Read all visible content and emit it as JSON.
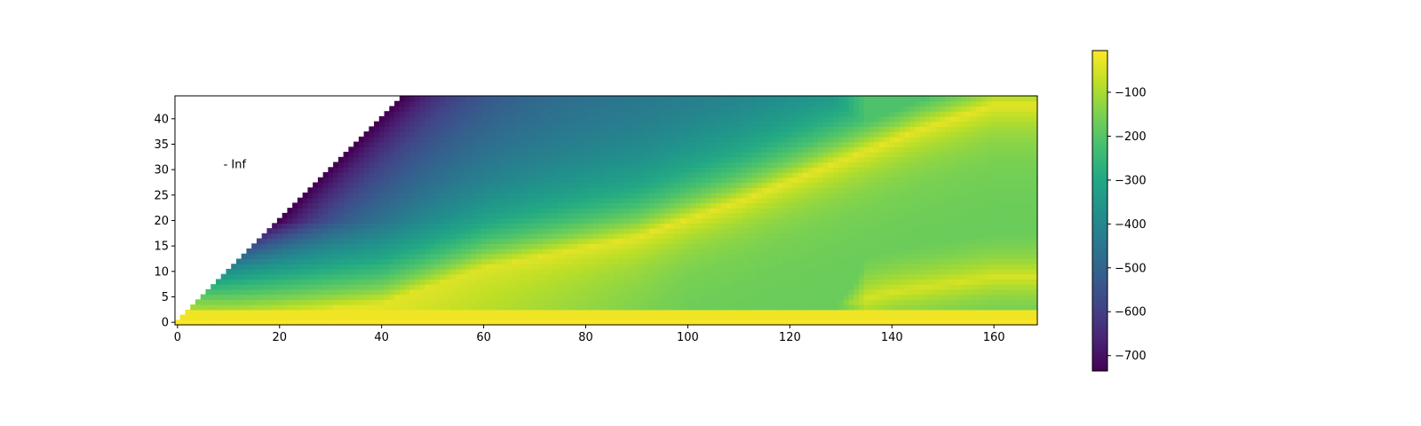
{
  "chart_data": {
    "type": "heatmap",
    "title": "",
    "xlabel": "",
    "ylabel": "",
    "colormap": "viridis",
    "grid": false,
    "n_cols": 169,
    "n_rows": 45,
    "xlim": [
      -0.5,
      168.5
    ],
    "ylim": [
      -0.5,
      44.5
    ],
    "x_ticks": [
      0,
      20,
      40,
      60,
      80,
      100,
      120,
      140,
      160
    ],
    "y_ticks": [
      0,
      5,
      10,
      15,
      20,
      25,
      30,
      35,
      40
    ],
    "masked_region": "upper-left triangle: cells where row > col are -Inf (blank)",
    "annotation": {
      "text": "- Inf",
      "x": 9,
      "y": 31
    },
    "colorbar": {
      "min": -735,
      "max": -5,
      "ticks": [
        -100,
        -200,
        -300,
        -400,
        -500,
        -600,
        -700
      ],
      "placement": "right"
    },
    "value_model": {
      "description": "approximate log-value surface read from colors",
      "ridges": [
        {
          "name": "bottom-band",
          "points": [
            [
              0,
              0
            ],
            [
              168,
              0
            ]
          ],
          "value": -10
        },
        {
          "name": "lower-diagonal",
          "points": [
            [
              0,
              0
            ],
            [
              40,
              4
            ],
            [
              60,
              11
            ],
            [
              90,
              17
            ],
            [
              110,
              24
            ],
            [
              125,
              30
            ],
            [
              145,
              38
            ],
            [
              160,
              43
            ]
          ],
          "value": -60
        },
        {
          "name": "right-lower",
          "points": [
            [
              120,
              1
            ],
            [
              140,
              6
            ],
            [
              160,
              9
            ]
          ],
          "value": -50
        }
      ],
      "edge_value": -735,
      "top_left_value": -720
    }
  }
}
